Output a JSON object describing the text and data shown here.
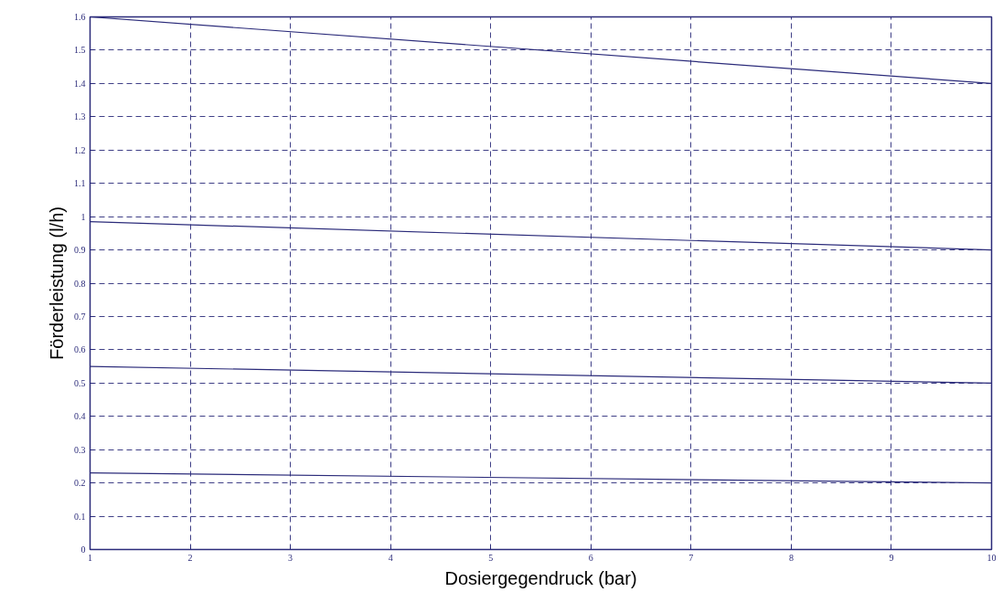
{
  "chart_data": {
    "type": "line",
    "xlabel": "Dosiergegendruck (bar)",
    "ylabel": "Förderleistung (l/h)",
    "x": [
      1,
      10
    ],
    "series": [
      {
        "color": "#2b2b7a",
        "values": [
          1.6,
          1.4
        ]
      },
      {
        "color": "#2b2b7a",
        "values": [
          0.985,
          0.9
        ]
      },
      {
        "color": "#2b2b7a",
        "values": [
          0.55,
          0.5
        ]
      },
      {
        "color": "#2b2b7a",
        "values": [
          0.23,
          0.2
        ]
      }
    ],
    "xlim": [
      1,
      10
    ],
    "xticks": [
      1,
      2,
      3,
      4,
      5,
      6,
      7,
      8,
      9,
      10
    ],
    "ylim": [
      0,
      1.6
    ],
    "yticks": [
      0,
      0.1,
      0.2,
      0.3,
      0.4,
      0.5,
      0.6,
      0.7,
      0.8,
      0.9,
      1,
      1.1,
      1.2,
      1.3,
      1.4,
      1.5,
      1.6
    ],
    "grid": true,
    "line_style": "solid",
    "marker": "none"
  }
}
